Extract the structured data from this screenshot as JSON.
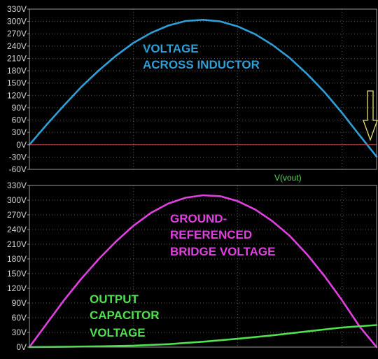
{
  "chart_data": [
    {
      "type": "line",
      "title": "",
      "xlabel": "",
      "ylabel": "",
      "ylim": [
        -60,
        330
      ],
      "yticks": [
        "330V",
        "300V",
        "270V",
        "240V",
        "210V",
        "180V",
        "150V",
        "120V",
        "90V",
        "60V",
        "30V",
        "0V",
        "-30V",
        "-60V"
      ],
      "xlim": [
        0,
        1
      ],
      "series": [
        {
          "color": "#2f9fd8",
          "x": [
            0,
            0.05,
            0.1,
            0.15,
            0.2,
            0.25,
            0.3,
            0.35,
            0.4,
            0.45,
            0.5,
            0.55,
            0.6,
            0.65,
            0.7,
            0.75,
            0.8,
            0.85,
            0.9,
            0.95,
            1.0
          ],
          "y": [
            0,
            49,
            96,
            141,
            181,
            217,
            248,
            272,
            290,
            301,
            304,
            300,
            288,
            269,
            243,
            211,
            172,
            128,
            78,
            24,
            -29
          ]
        },
        {
          "color": "#c04040",
          "x": [
            0,
            1.0
          ],
          "y": [
            0,
            0
          ]
        }
      ],
      "annotations": [
        {
          "text": "VOLTAGE",
          "color": "#2f9fd8"
        },
        {
          "text": "ACROSS INDUCTOR",
          "color": "#2f9fd8"
        }
      ],
      "grid": true
    },
    {
      "type": "line",
      "title": "",
      "xlabel": "",
      "ylabel": "",
      "ylim": [
        0,
        330
      ],
      "yticks": [
        "330V",
        "300V",
        "270V",
        "240V",
        "210V",
        "180V",
        "150V",
        "120V",
        "90V",
        "60V",
        "30V",
        "0V"
      ],
      "xlim": [
        0,
        1
      ],
      "trace_label": "V(vout)",
      "series": [
        {
          "color": "#e040e0",
          "x": [
            0,
            0.05,
            0.1,
            0.15,
            0.2,
            0.25,
            0.3,
            0.35,
            0.4,
            0.45,
            0.5,
            0.55,
            0.6,
            0.65,
            0.7,
            0.75,
            0.8,
            0.85,
            0.9,
            0.95,
            1.0
          ],
          "y": [
            0,
            48,
            96,
            140,
            180,
            216,
            248,
            274,
            293,
            305,
            310,
            308,
            298,
            281,
            257,
            227,
            189,
            145,
            96,
            43,
            0
          ]
        },
        {
          "color": "#50e050",
          "x": [
            0,
            0.1,
            0.2,
            0.3,
            0.4,
            0.5,
            0.6,
            0.7,
            0.8,
            0.9,
            1.0
          ],
          "y": [
            0,
            0.5,
            1.5,
            3,
            6,
            11,
            17,
            24,
            32,
            40,
            45
          ]
        }
      ],
      "annotations": [
        {
          "text": "GROUND-",
          "color": "#e040e0"
        },
        {
          "text": "REFERENCED",
          "color": "#e040e0"
        },
        {
          "text": "BRIDGE VOLTAGE",
          "color": "#e040e0"
        },
        {
          "text": "OUTPUT",
          "color": "#50e050"
        },
        {
          "text": "CAPACITOR",
          "color": "#50e050"
        },
        {
          "text": "VOLTAGE",
          "color": "#50e050"
        }
      ],
      "grid": true
    }
  ],
  "colors": {
    "background": "#000000",
    "grid": "#5a5a5a",
    "frame": "#9a9a9a",
    "tick_text": "#d8d8d8",
    "trace_label": "#50e050",
    "cursor_arrow": "#e8e070"
  }
}
